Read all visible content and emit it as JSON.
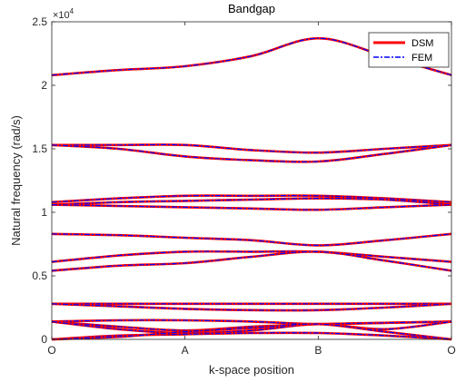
{
  "chart_data": {
    "type": "line",
    "title": "Bandgap",
    "xlabel": "k-space position",
    "ylabel": "Natural frequency (rad/s)",
    "y_exponent_label": "×10",
    "y_exponent_power": "4",
    "x_tick_labels": [
      "O",
      "A",
      "B",
      "O"
    ],
    "y_tick_labels": [
      "0",
      "0.5",
      "1",
      "1.5",
      "2",
      "2.5"
    ],
    "y_ticks": [
      0,
      5000,
      10000,
      15000,
      20000,
      25000
    ],
    "xlim": [
      0,
      3
    ],
    "ylim": [
      0,
      25000
    ],
    "grid": false,
    "legend_position": "top-right",
    "x": [
      0,
      0.5,
      1,
      1.5,
      2,
      2.5,
      3
    ],
    "series": [
      {
        "name": "DSM",
        "color": "#ff0000",
        "style": "solid"
      },
      {
        "name": "FEM",
        "color": "#0000ff",
        "style": "dash-dot"
      }
    ],
    "bands": [
      [
        20800,
        21200,
        21500,
        22300,
        23700,
        22300,
        20800
      ],
      [
        15300,
        15300,
        15300,
        14900,
        14700,
        15000,
        15300
      ],
      [
        15300,
        15000,
        14400,
        14100,
        14000,
        14600,
        15300
      ],
      [
        10800,
        11100,
        11300,
        11300,
        11300,
        11100,
        10800
      ],
      [
        10600,
        10800,
        10900,
        11000,
        11100,
        11000,
        10600
      ],
      [
        10600,
        10500,
        10400,
        10300,
        10200,
        10400,
        10600
      ],
      [
        8300,
        8200,
        8000,
        7800,
        7400,
        7800,
        8300
      ],
      [
        6100,
        6600,
        6900,
        6900,
        6900,
        6500,
        6100
      ],
      [
        5400,
        5800,
        6000,
        6500,
        6900,
        6200,
        5400
      ],
      [
        2800,
        2800,
        2800,
        2800,
        2800,
        2800,
        2800
      ],
      [
        2800,
        2600,
        2400,
        2300,
        2300,
        2500,
        2800
      ],
      [
        1400,
        1500,
        1500,
        1400,
        1200,
        1300,
        1400
      ],
      [
        1400,
        1000,
        700,
        1000,
        1200,
        1300,
        1400
      ],
      [
        1400,
        800,
        500,
        700,
        1200,
        800,
        1400
      ],
      [
        0,
        300,
        400,
        500,
        500,
        300,
        0
      ],
      [
        0,
        200,
        600,
        900,
        1200,
        600,
        0
      ]
    ]
  }
}
